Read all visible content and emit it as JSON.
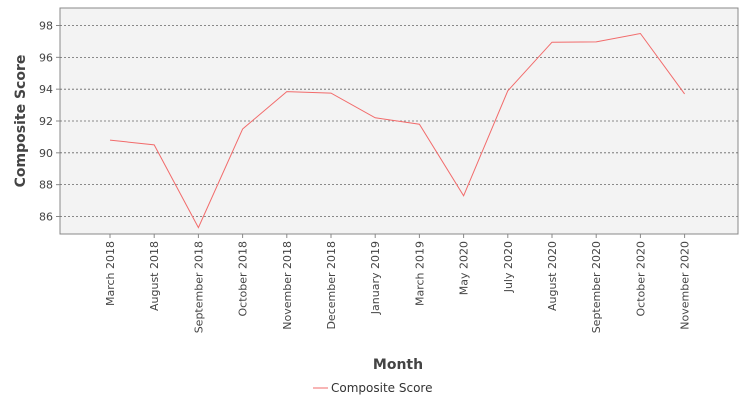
{
  "chart_data": {
    "type": "line",
    "xlabel": "Month",
    "ylabel": "Composite Score",
    "categories": [
      "March 2018",
      "August 2018",
      "September 2018",
      "October 2018",
      "November 2018",
      "December 2018",
      "January 2019",
      "March 2019",
      "May 2020",
      "July 2020",
      "August 2020",
      "September 2020",
      "October 2020",
      "November 2020"
    ],
    "series": [
      {
        "name": "Composite Score",
        "color": "#f26b6b",
        "values": [
          90.8,
          90.5,
          85.3,
          91.5,
          93.85,
          93.75,
          92.2,
          91.8,
          87.3,
          93.9,
          96.95,
          96.97,
          97.5,
          93.7
        ]
      }
    ],
    "ylim": [
      84.9,
      99.1
    ],
    "yticks": [
      "86",
      "88",
      "90",
      "92",
      "94",
      "96",
      "98"
    ],
    "grid": true,
    "legend_position": "bottom-center",
    "colors": {
      "plot_background": "#f3f3f3",
      "grid": "#666666",
      "axis": "#888888"
    }
  }
}
